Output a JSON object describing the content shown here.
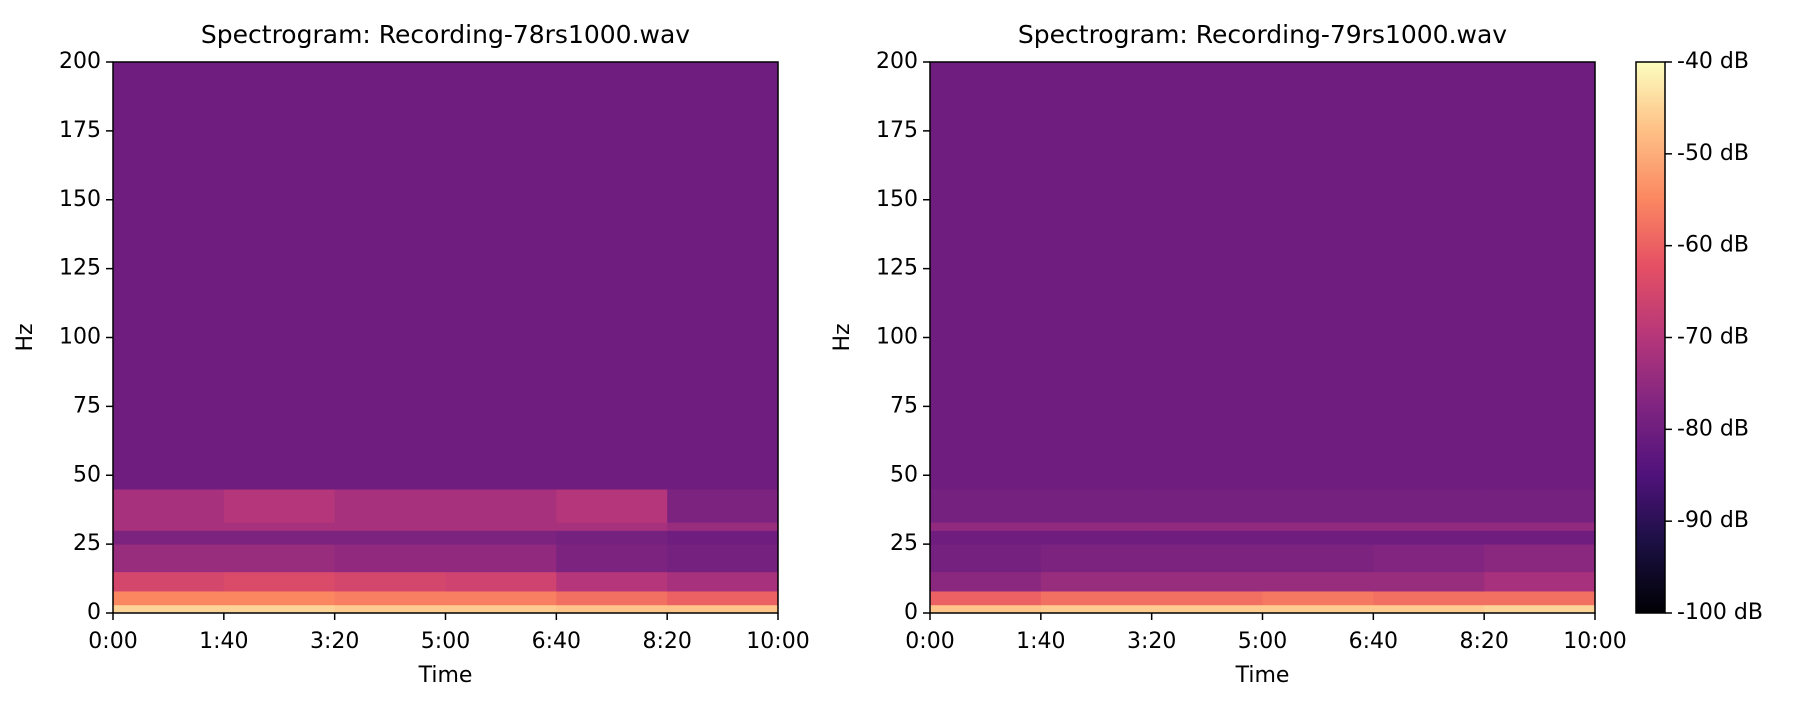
{
  "chart_data": [
    {
      "type": "heatmap",
      "title": "Spectrogram: Recording-78rs1000.wav",
      "x_label": "Time",
      "y_label": "Hz",
      "x_edges": [
        0,
        100,
        200,
        300,
        400,
        500,
        600
      ],
      "y_edges": [
        0,
        3,
        8,
        15,
        25,
        30,
        33,
        45,
        200
      ],
      "z": [
        [
          -45,
          -45,
          -46,
          -46,
          -47,
          -47
        ],
        [
          -55,
          -55,
          -56,
          -56,
          -58,
          -60
        ],
        [
          -65,
          -64,
          -65,
          -66,
          -70,
          -72
        ],
        [
          -74,
          -74,
          -75,
          -75,
          -78,
          -79
        ],
        [
          -78,
          -78,
          -78,
          -78,
          -79,
          -80
        ],
        [
          -72,
          -72,
          -72,
          -72,
          -72,
          -74
        ],
        [
          -72,
          -70,
          -72,
          -72,
          -70,
          -78
        ],
        [
          -80,
          -80,
          -80,
          -80,
          -80,
          -80
        ]
      ],
      "xlim": [
        0,
        600
      ],
      "ylim": [
        0,
        200
      ],
      "xticks": [
        {
          "value": 0,
          "label": "0:00"
        },
        {
          "value": 100,
          "label": "1:40"
        },
        {
          "value": 200,
          "label": "3:20"
        },
        {
          "value": 300,
          "label": "5:00"
        },
        {
          "value": 400,
          "label": "6:40"
        },
        {
          "value": 500,
          "label": "8:20"
        },
        {
          "value": 600,
          "label": "10:00"
        }
      ],
      "yticks": [
        0,
        25,
        50,
        75,
        100,
        125,
        150,
        175,
        200
      ]
    },
    {
      "type": "heatmap",
      "title": "Spectrogram: Recording-79rs1000.wav",
      "x_label": "Time",
      "y_label": "Hz",
      "x_edges": [
        0,
        100,
        200,
        300,
        400,
        500,
        600
      ],
      "y_edges": [
        0,
        3,
        8,
        15,
        25,
        30,
        33,
        45,
        200
      ],
      "z": [
        [
          -47,
          -46,
          -46,
          -46,
          -46,
          -45
        ],
        [
          -60,
          -58,
          -58,
          -57,
          -58,
          -58
        ],
        [
          -76,
          -74,
          -74,
          -74,
          -74,
          -72
        ],
        [
          -79,
          -78,
          -78,
          -78,
          -77,
          -76
        ],
        [
          -80,
          -80,
          -80,
          -80,
          -80,
          -80
        ],
        [
          -75,
          -75,
          -75,
          -75,
          -75,
          -75
        ],
        [
          -79,
          -79,
          -79,
          -79,
          -79,
          -79
        ],
        [
          -80,
          -80,
          -80,
          -80,
          -80,
          -80
        ]
      ],
      "xlim": [
        0,
        600
      ],
      "ylim": [
        0,
        200
      ],
      "xticks": [
        {
          "value": 0,
          "label": "0:00"
        },
        {
          "value": 100,
          "label": "1:40"
        },
        {
          "value": 200,
          "label": "3:20"
        },
        {
          "value": 300,
          "label": "5:00"
        },
        {
          "value": 400,
          "label": "6:40"
        },
        {
          "value": 500,
          "label": "8:20"
        },
        {
          "value": 600,
          "label": "10:00"
        }
      ],
      "yticks": [
        0,
        25,
        50,
        75,
        100,
        125,
        150,
        175,
        200
      ]
    },
    {
      "type": "colorbar",
      "colormap": "magma",
      "clim": [
        -100,
        -40
      ],
      "ticks": [
        {
          "value": -40,
          "label": "-40 dB"
        },
        {
          "value": -50,
          "label": "-50 dB"
        },
        {
          "value": -60,
          "label": "-60 dB"
        },
        {
          "value": -70,
          "label": "-70 dB"
        },
        {
          "value": -80,
          "label": "-80 dB"
        },
        {
          "value": -90,
          "label": "-90 dB"
        },
        {
          "value": -100,
          "label": "-100 dB"
        }
      ]
    }
  ]
}
